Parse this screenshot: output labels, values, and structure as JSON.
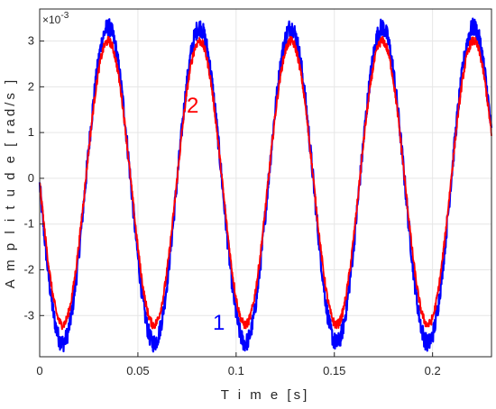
{
  "chart_data": {
    "type": "line",
    "title": "",
    "xlabel": "T i m e [s]",
    "ylabel": "A m p l i t u d e [ rad/s ]",
    "xlim": [
      0,
      0.23
    ],
    "ylim": [
      -3.9,
      3.7
    ],
    "x_ticks": [
      "0",
      "0.05",
      "0.1",
      "0.15",
      "0.2"
    ],
    "x_tick_values": [
      0,
      0.05,
      0.1,
      0.15,
      0.2
    ],
    "y_ticks": [
      "-3",
      "-2",
      "-1",
      "0",
      "1",
      "2",
      "3"
    ],
    "y_tick_values": [
      -3,
      -2,
      -1,
      0,
      1,
      2,
      3
    ],
    "y_multiplier": "×10",
    "y_multiplier_exponent": "-3",
    "grid": true,
    "annotations": [
      {
        "text": "1",
        "color": "#0000ff",
        "x": 0.098,
        "y": -3.2
      },
      {
        "text": "2",
        "color": "#ff0000",
        "x": 0.084,
        "y": 1.6
      }
    ],
    "series": [
      {
        "color": "#0000ff",
        "signal": "noisy sine",
        "amplitude": 3.45,
        "offset": -0.15,
        "period": 0.0465,
        "noise": 0.2,
        "x_samples": [
          0.0,
          0.0116,
          0.0349,
          0.0581,
          0.0814,
          0.1046,
          0.1279,
          0.1511,
          0.1744,
          0.1976,
          0.2209,
          0.23
        ],
        "values": [
          0.3,
          -3.6,
          3.4,
          -3.6,
          3.4,
          -3.6,
          3.4,
          -3.6,
          3.4,
          -3.6,
          3.4,
          1.0
        ]
      },
      {
        "color": "#ff0000",
        "signal": "noisy sine",
        "amplitude": 3.1,
        "offset": -0.1,
        "period": 0.0465,
        "noise": 0.1,
        "x_samples": [
          0.0,
          0.0116,
          0.0349,
          0.0581,
          0.0814,
          0.1046,
          0.1279,
          0.1511,
          0.1744,
          0.1976,
          0.2209,
          0.23
        ],
        "values": [
          0.1,
          -3.2,
          3.0,
          -3.2,
          3.0,
          -3.2,
          3.0,
          -3.2,
          3.0,
          -3.2,
          3.0,
          0.9
        ]
      }
    ]
  },
  "colors": {
    "axis": "#262626",
    "grid": "#e6e6e6",
    "background": "#ffffff"
  }
}
